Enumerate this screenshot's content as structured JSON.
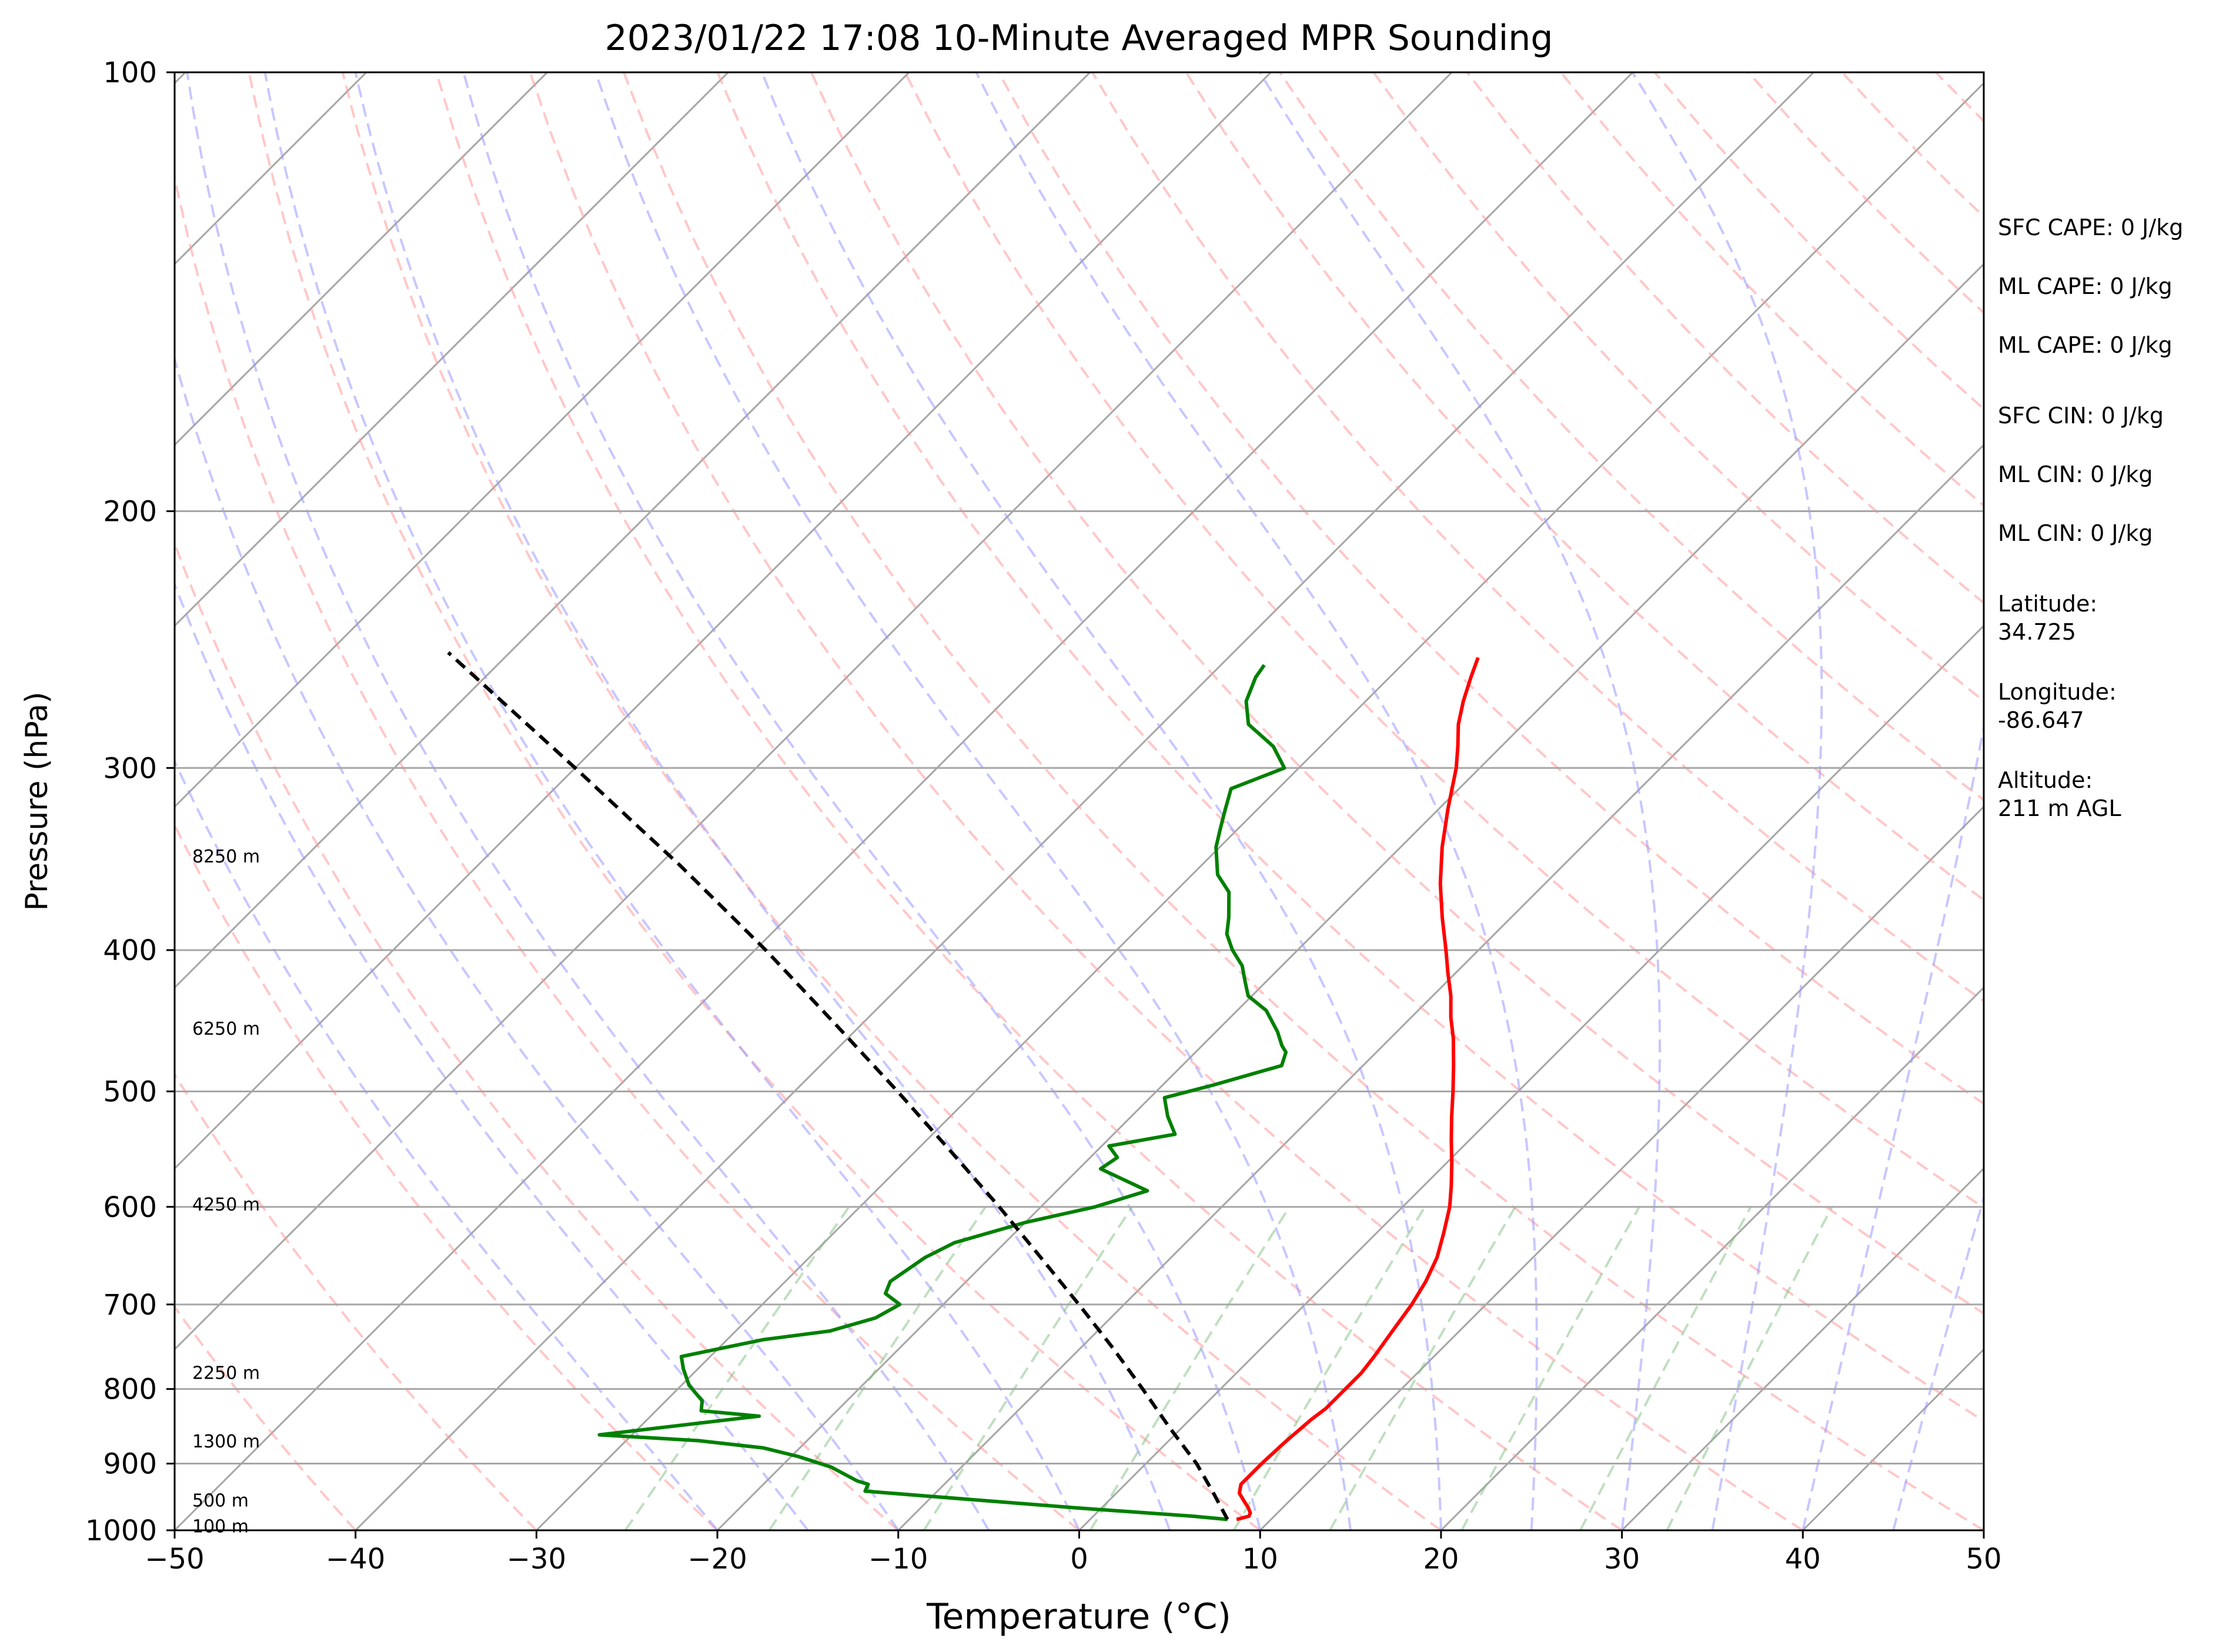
{
  "chart_data": {
    "type": "line",
    "title": "2023/01/22 17:08 10-Minute Averaged MPR Sounding",
    "xlabel": "Temperature (°C)",
    "ylabel": "Pressure (hPa)",
    "xlim": [
      -50,
      50
    ],
    "ylim": [
      1000,
      100
    ],
    "y_scale": "log",
    "skew": "skew-T, isotherms tilted 45°",
    "grid": true,
    "x_ticks": [
      "−50",
      "−40",
      "−30",
      "−20",
      "−10",
      "0",
      "10",
      "20",
      "30",
      "40",
      "50"
    ],
    "x_tick_values": [
      -50,
      -40,
      -30,
      -20,
      -10,
      0,
      10,
      20,
      30,
      40,
      50
    ],
    "y_ticks": [
      "100",
      "200",
      "300",
      "400",
      "500",
      "600",
      "700",
      "800",
      "900",
      "1000"
    ],
    "y_tick_values": [
      100,
      200,
      300,
      400,
      500,
      600,
      700,
      800,
      900,
      1000
    ],
    "height_labels": [
      {
        "text": "8250 m",
        "p": 345
      },
      {
        "text": "6250 m",
        "p": 453
      },
      {
        "text": "4250 m",
        "p": 598
      },
      {
        "text": "2250 m",
        "p": 780
      },
      {
        "text": "1300 m",
        "p": 869
      },
      {
        "text": "500 m",
        "p": 954
      },
      {
        "text": "100 m",
        "p": 994
      }
    ],
    "info_lines": [
      "SFC CAPE: 0 J/kg",
      "ML CAPE: 0 J/kg",
      "ML CAPE: 0 J/kg",
      "SFC CIN: 0 J/kg",
      "ML CIN: 0 J/kg",
      "ML CIN: 0 J/kg",
      "Latitude:\n34.725",
      "Longitude:\n-86.647",
      "Altitude:\n211 m AGL"
    ],
    "colors": {
      "temperature": "#ff0000",
      "dewpoint": "#008000",
      "parcel": "#000000",
      "isotherm": "#a6a6a6",
      "isobar": "#a6a6a6",
      "dry_adiabat": "#ff9999",
      "moist_adiabat": "#9999ff",
      "mixing_ratio": "#80c080"
    },
    "series": [
      {
        "type": "temperature",
        "points": [
          [
            8.1,
            983
          ],
          [
            8.6,
            978
          ],
          [
            8.5,
            973
          ],
          [
            8.1,
            965
          ],
          [
            7.5,
            955
          ],
          [
            6.8,
            943
          ],
          [
            6.4,
            930
          ],
          [
            6.4,
            900
          ],
          [
            6.5,
            870
          ],
          [
            6.7,
            840
          ],
          [
            6.9,
            825
          ],
          [
            6.9,
            800
          ],
          [
            6.9,
            780
          ],
          [
            6.7,
            760
          ],
          [
            6.3,
            730
          ],
          [
            5.9,
            700
          ],
          [
            5.4,
            675
          ],
          [
            4.7,
            650
          ],
          [
            3.7,
            625
          ],
          [
            2.6,
            600
          ],
          [
            1.5,
            580
          ],
          [
            0.3,
            560
          ],
          [
            -1.0,
            540
          ],
          [
            -2.3,
            520
          ],
          [
            -3.6,
            500
          ],
          [
            -5.0,
            480
          ],
          [
            -6.5,
            460
          ],
          [
            -7.8,
            445
          ],
          [
            -9.0,
            430
          ],
          [
            -10.4,
            415
          ],
          [
            -11.8,
            400
          ],
          [
            -13.8,
            380
          ],
          [
            -15.8,
            360
          ],
          [
            -17.7,
            340
          ],
          [
            -19.5,
            320
          ],
          [
            -21.3,
            300
          ],
          [
            -22.4,
            290
          ],
          [
            -23.6,
            280
          ],
          [
            -24.6,
            270
          ],
          [
            -25.5,
            260
          ],
          [
            -26.2,
            252
          ]
        ]
      },
      {
        "type": "dewpoint",
        "points": [
          [
            7.6,
            983
          ],
          [
            5.5,
            978
          ],
          [
            -1.5,
            965
          ],
          [
            -14.0,
            940
          ],
          [
            -14.2,
            930
          ],
          [
            -15.0,
            925
          ],
          [
            -17.2,
            905
          ],
          [
            -19.6,
            890
          ],
          [
            -22.0,
            878
          ],
          [
            -26.0,
            868
          ],
          [
            -31.8,
            860
          ],
          [
            -24.0,
            835
          ],
          [
            -27.5,
            828
          ],
          [
            -28.0,
            815
          ],
          [
            -28.8,
            805
          ],
          [
            -29.6,
            795
          ],
          [
            -30.8,
            775
          ],
          [
            -31.6,
            760
          ],
          [
            -28.0,
            740
          ],
          [
            -24.8,
            730
          ],
          [
            -23.0,
            715
          ],
          [
            -22.4,
            700
          ],
          [
            -23.8,
            688
          ],
          [
            -24.2,
            675
          ],
          [
            -23.6,
            650
          ],
          [
            -22.8,
            635
          ],
          [
            -20.0,
            615
          ],
          [
            -17.0,
            600
          ],
          [
            -15.0,
            585
          ],
          [
            -18.8,
            565
          ],
          [
            -18.5,
            555
          ],
          [
            -19.6,
            545
          ],
          [
            -16.6,
            535
          ],
          [
            -18.0,
            520
          ],
          [
            -19.2,
            505
          ],
          [
            -17.2,
            495
          ],
          [
            -14.5,
            480
          ],
          [
            -15.0,
            470
          ],
          [
            -15.6,
            465
          ],
          [
            -16.6,
            455
          ],
          [
            -18.4,
            440
          ],
          [
            -20.2,
            430
          ],
          [
            -21.2,
            420
          ],
          [
            -22.2,
            410
          ],
          [
            -23.6,
            400
          ],
          [
            -24.8,
            390
          ],
          [
            -25.6,
            380
          ],
          [
            -27.0,
            365
          ],
          [
            -28.6,
            355
          ],
          [
            -30.2,
            340
          ],
          [
            -31.0,
            330
          ],
          [
            -31.8,
            320
          ],
          [
            -32.6,
            310
          ],
          [
            -30.8,
            300
          ],
          [
            -32.6,
            290
          ],
          [
            -35.2,
            280
          ],
          [
            -36.6,
            270
          ],
          [
            -37.4,
            260
          ],
          [
            -37.6,
            255
          ]
        ]
      },
      {
        "type": "parcel",
        "points": [
          [
            7.6,
            983
          ],
          [
            5.2,
            940
          ],
          [
            2.8,
            900
          ],
          [
            -0.7,
            850
          ],
          [
            -4.3,
            800
          ],
          [
            -8.2,
            750
          ],
          [
            -12.5,
            700
          ],
          [
            -17.2,
            650
          ],
          [
            -22.3,
            600
          ],
          [
            -28.0,
            550
          ],
          [
            -34.3,
            500
          ],
          [
            -41.4,
            450
          ],
          [
            -49.4,
            400
          ],
          [
            -58.8,
            350
          ],
          [
            -64.2,
            325
          ],
          [
            -70.0,
            300
          ],
          [
            -76.4,
            275
          ],
          [
            -83.4,
            250
          ]
        ]
      }
    ]
  }
}
